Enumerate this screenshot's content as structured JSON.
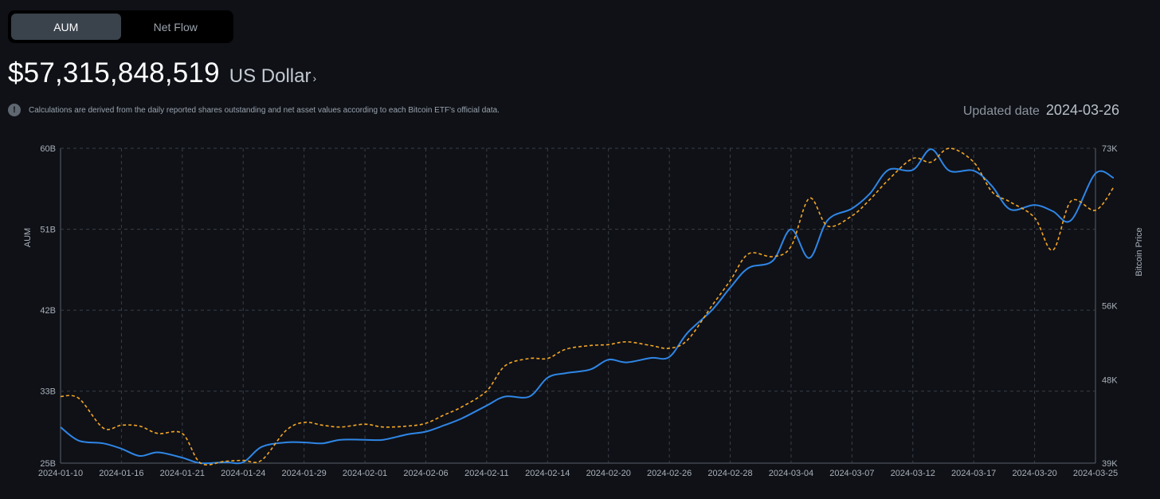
{
  "tabs": [
    {
      "label": "AUM",
      "active": true
    },
    {
      "label": "Net Flow",
      "active": false
    }
  ],
  "headline": {
    "amount": "$57,315,848,519",
    "currency": "US Dollar",
    "currency_chevron": "›"
  },
  "note": {
    "icon": "info-icon",
    "icon_glyph": "!",
    "text": "Calculations are derived from the daily reported shares outstanding and net asset values according to each Bitcoin ETF's official data."
  },
  "updated": {
    "label": "Updated date",
    "value": "2024-03-26"
  },
  "colors": {
    "background": "#0f1117",
    "aum_line": "#2f86e6",
    "price_line": "#f5a623",
    "grid": "#3a3f47"
  },
  "chart_data": {
    "type": "line",
    "xlabel": "",
    "ylabel_left": "AUM",
    "ylabel_right": "Bitcoin Price",
    "x_ticks": [
      "2024-01-10",
      "2024-01-16",
      "2024-01-21",
      "2024-01-24",
      "2024-01-29",
      "2024-02-01",
      "2024-02-06",
      "2024-02-11",
      "2024-02-14",
      "2024-02-20",
      "2024-02-26",
      "2024-02-28",
      "2024-03-04",
      "2024-03-07",
      "2024-03-12",
      "2024-03-17",
      "2024-03-20",
      "2024-03-25"
    ],
    "y_left_ticks": [
      "25B",
      "33B",
      "42B",
      "51B",
      "60B"
    ],
    "y_left_range": [
      25,
      60
    ],
    "y_right_ticks": [
      "39K",
      "48K",
      "56K",
      "73K"
    ],
    "y_right_range": [
      39,
      73
    ],
    "grid": true,
    "series": [
      {
        "name": "AUM",
        "axis": "left",
        "unit": "B",
        "style": "solid",
        "points": [
          [
            0,
            29
          ],
          [
            0.3,
            27.5
          ],
          [
            0.7,
            27.2
          ],
          [
            1,
            26.6
          ],
          [
            1.3,
            25.8
          ],
          [
            1.6,
            26.2
          ],
          [
            2,
            25.6
          ],
          [
            2.3,
            24.8
          ],
          [
            2.7,
            25.1
          ],
          [
            3,
            25.1
          ],
          [
            3.3,
            26.8
          ],
          [
            3.7,
            27.3
          ],
          [
            4,
            27.3
          ],
          [
            4.3,
            27.2
          ],
          [
            4.6,
            27.6
          ],
          [
            5,
            27.6
          ],
          [
            5.3,
            27.6
          ],
          [
            5.7,
            28.2
          ],
          [
            6,
            28.5
          ],
          [
            6.3,
            29.2
          ],
          [
            6.6,
            30.0
          ],
          [
            7,
            31.4
          ],
          [
            7.3,
            32.4
          ],
          [
            7.7,
            32.4
          ],
          [
            8,
            34.5
          ],
          [
            8.3,
            35.0
          ],
          [
            8.7,
            35.4
          ],
          [
            9,
            36.5
          ],
          [
            9.3,
            36.2
          ],
          [
            9.7,
            36.7
          ],
          [
            10,
            36.8
          ],
          [
            10.3,
            39.5
          ],
          [
            10.7,
            42.0
          ],
          [
            11,
            44.5
          ],
          [
            11.3,
            46.7
          ],
          [
            11.7,
            47.5
          ],
          [
            12,
            51.0
          ],
          [
            12.3,
            47.8
          ],
          [
            12.6,
            52.0
          ],
          [
            13,
            53.3
          ],
          [
            13.3,
            55.0
          ],
          [
            13.6,
            57.6
          ],
          [
            14,
            57.6
          ],
          [
            14.3,
            59.9
          ],
          [
            14.6,
            57.5
          ],
          [
            15,
            57.5
          ],
          [
            15.3,
            55.8
          ],
          [
            15.6,
            53.2
          ],
          [
            16,
            53.7
          ],
          [
            16.3,
            53.0
          ],
          [
            16.6,
            52.0
          ],
          [
            17,
            57.2
          ],
          [
            17.3,
            56.7
          ]
        ]
      },
      {
        "name": "Bitcoin Price",
        "axis": "right",
        "unit": "K",
        "style": "dashed",
        "points": [
          [
            0,
            46.2
          ],
          [
            0.3,
            46.0
          ],
          [
            0.7,
            42.8
          ],
          [
            1,
            43.1
          ],
          [
            1.3,
            43.0
          ],
          [
            1.6,
            42.2
          ],
          [
            2,
            42.2
          ],
          [
            2.3,
            38.8
          ],
          [
            2.7,
            39.2
          ],
          [
            3,
            39.3
          ],
          [
            3.3,
            39.3
          ],
          [
            3.7,
            42.5
          ],
          [
            4,
            43.4
          ],
          [
            4.3,
            43.1
          ],
          [
            4.6,
            42.9
          ],
          [
            5,
            43.2
          ],
          [
            5.3,
            42.9
          ],
          [
            5.7,
            43.0
          ],
          [
            6,
            43.3
          ],
          [
            6.3,
            44.2
          ],
          [
            6.6,
            45.1
          ],
          [
            7,
            46.8
          ],
          [
            7.3,
            49.5
          ],
          [
            7.7,
            50.3
          ],
          [
            8,
            50.3
          ],
          [
            8.3,
            51.3
          ],
          [
            8.7,
            51.7
          ],
          [
            9,
            51.8
          ],
          [
            9.3,
            52.1
          ],
          [
            9.7,
            51.7
          ],
          [
            10,
            51.4
          ],
          [
            10.3,
            52.3
          ],
          [
            10.7,
            56.0
          ],
          [
            11,
            58.7
          ],
          [
            11.3,
            61.6
          ],
          [
            11.7,
            61.3
          ],
          [
            12,
            62.4
          ],
          [
            12.3,
            67.6
          ],
          [
            12.6,
            64.6
          ],
          [
            13,
            65.7
          ],
          [
            13.3,
            67.5
          ],
          [
            13.6,
            69.6
          ],
          [
            14,
            71.9
          ],
          [
            14.3,
            71.5
          ],
          [
            14.6,
            73.0
          ],
          [
            15,
            71.5
          ],
          [
            15.3,
            68.3
          ],
          [
            15.6,
            67.2
          ],
          [
            16,
            65.5
          ],
          [
            16.3,
            62.0
          ],
          [
            16.6,
            67.3
          ],
          [
            17,
            66.3
          ],
          [
            17.3,
            68.8
          ]
        ]
      }
    ]
  }
}
